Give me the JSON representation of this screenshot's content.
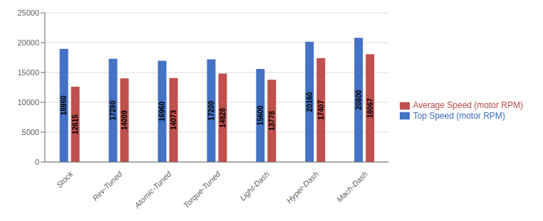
{
  "chart_data": {
    "type": "bar",
    "categories": [
      "Stock",
      "Rev-Tuned",
      "Atomic-Tuned",
      "Torque-Tuned",
      "Light-Dash",
      "Hyper-Dash",
      "Mach-Dash"
    ],
    "series": [
      {
        "name": "Top Speed (motor RPM)",
        "color": "#4472C4",
        "values": [
          18960,
          17280,
          16960,
          17200,
          15600,
          20160,
          20800
        ]
      },
      {
        "name": "Average Speed (motor RPM)",
        "color": "#C0504D",
        "values": [
          12615,
          14009,
          14073,
          14828,
          13778,
          17407,
          18067
        ]
      }
    ],
    "ylim": [
      0,
      25000
    ],
    "yticks": [
      0,
      5000,
      10000,
      15000,
      20000,
      25000
    ],
    "grid": true,
    "legend": "right",
    "data_labels": true
  }
}
